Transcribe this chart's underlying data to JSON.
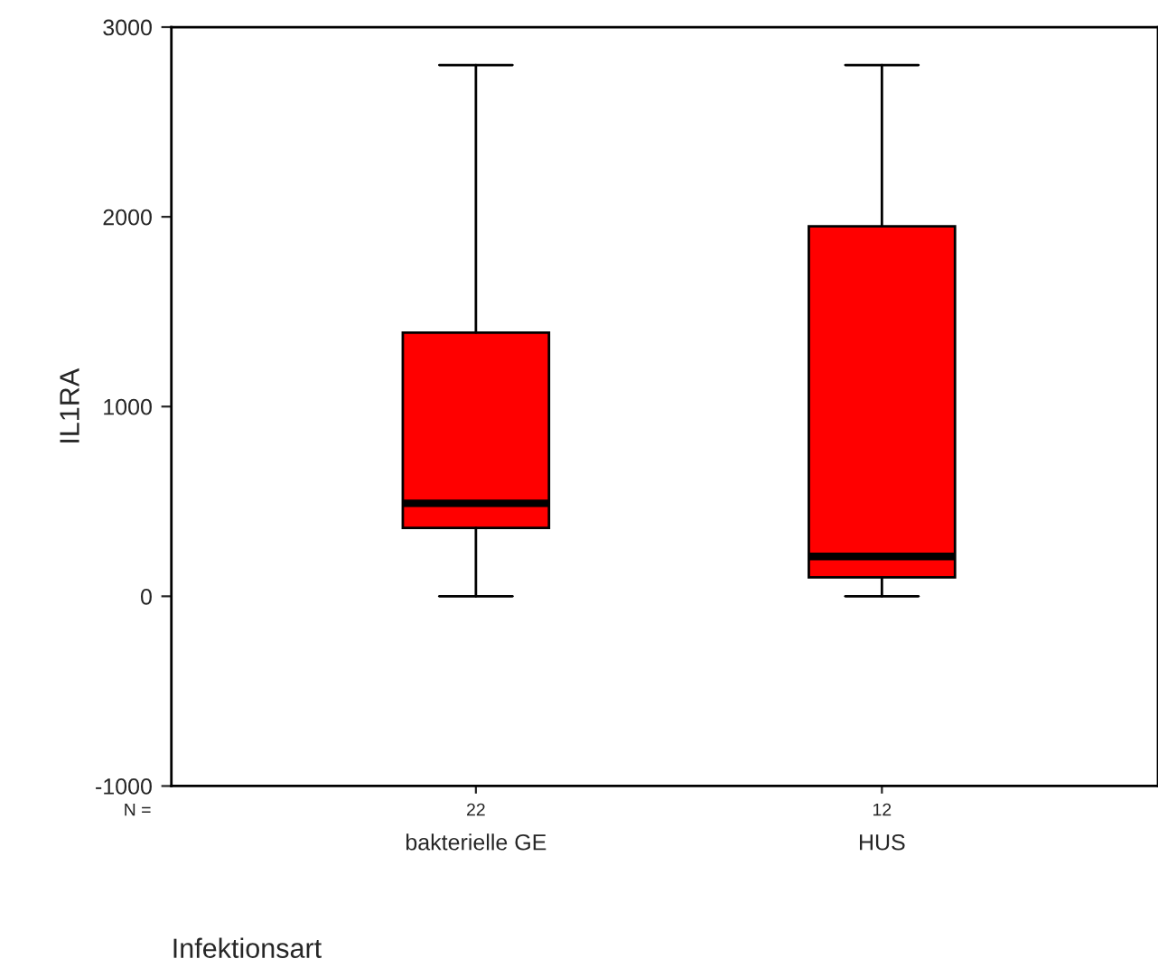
{
  "chart_data": {
    "type": "box",
    "xlabel": "Infektionsart",
    "ylabel": "IL1RA",
    "categories": [
      "bakterielle GE",
      "HUS"
    ],
    "boxes": [
      {
        "low": 0,
        "q1": 360,
        "median": 490,
        "q3": 1390,
        "high": 2800
      },
      {
        "low": 0,
        "q1": 100,
        "median": 210,
        "q3": 1950,
        "high": 2800
      }
    ],
    "color": "#ff0000",
    "ylim": [
      -1000,
      3000
    ],
    "yticks": [
      -1000,
      0,
      1000,
      2000,
      3000
    ],
    "annotations": [
      "N =",
      "22",
      "12"
    ],
    "grid": false,
    "legend": false
  }
}
